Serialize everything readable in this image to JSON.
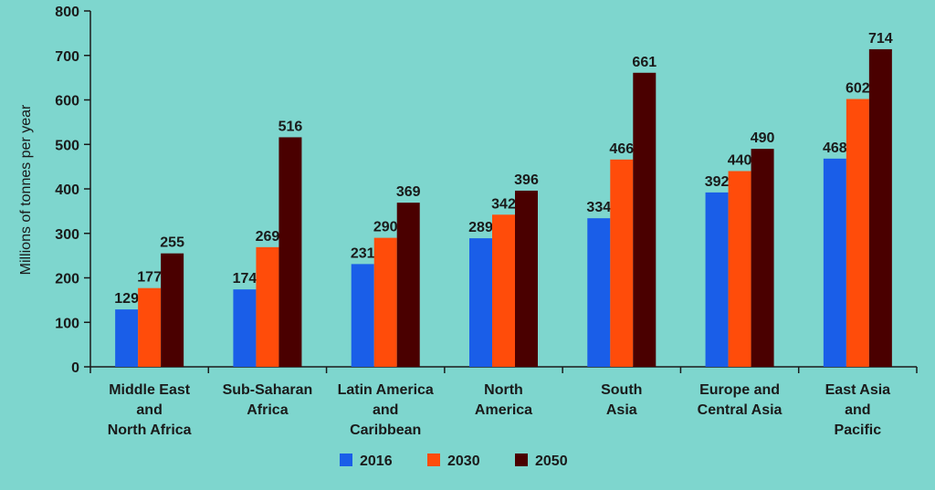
{
  "chart_data": {
    "type": "bar",
    "title": "",
    "xlabel": "",
    "ylabel": "Millions of tonnes per year",
    "ylim": [
      0,
      800
    ],
    "yticks": [
      0,
      100,
      200,
      300,
      400,
      500,
      600,
      700,
      800
    ],
    "categories": [
      [
        "Middle East",
        "and",
        "North Africa"
      ],
      [
        "Sub-Saharan",
        "Africa"
      ],
      [
        "Latin America",
        "and",
        "Caribbean"
      ],
      [
        "North",
        "America"
      ],
      [
        "South",
        "Asia"
      ],
      [
        "Europe and",
        "Central Asia"
      ],
      [
        "East Asia",
        "and",
        "Pacific"
      ]
    ],
    "series": [
      {
        "name": "2016",
        "color": "#1a5ee8",
        "values": [
          129,
          174,
          231,
          289,
          334,
          392,
          468
        ]
      },
      {
        "name": "2030",
        "color": "#ff4c0a",
        "values": [
          177,
          269,
          290,
          342,
          466,
          440,
          602
        ]
      },
      {
        "name": "2050",
        "color": "#4a0000",
        "values": [
          255,
          516,
          369,
          396,
          661,
          490,
          714
        ]
      }
    ],
    "grid": false,
    "legend_position": "bottom-center",
    "background": "#7ed6ce"
  }
}
